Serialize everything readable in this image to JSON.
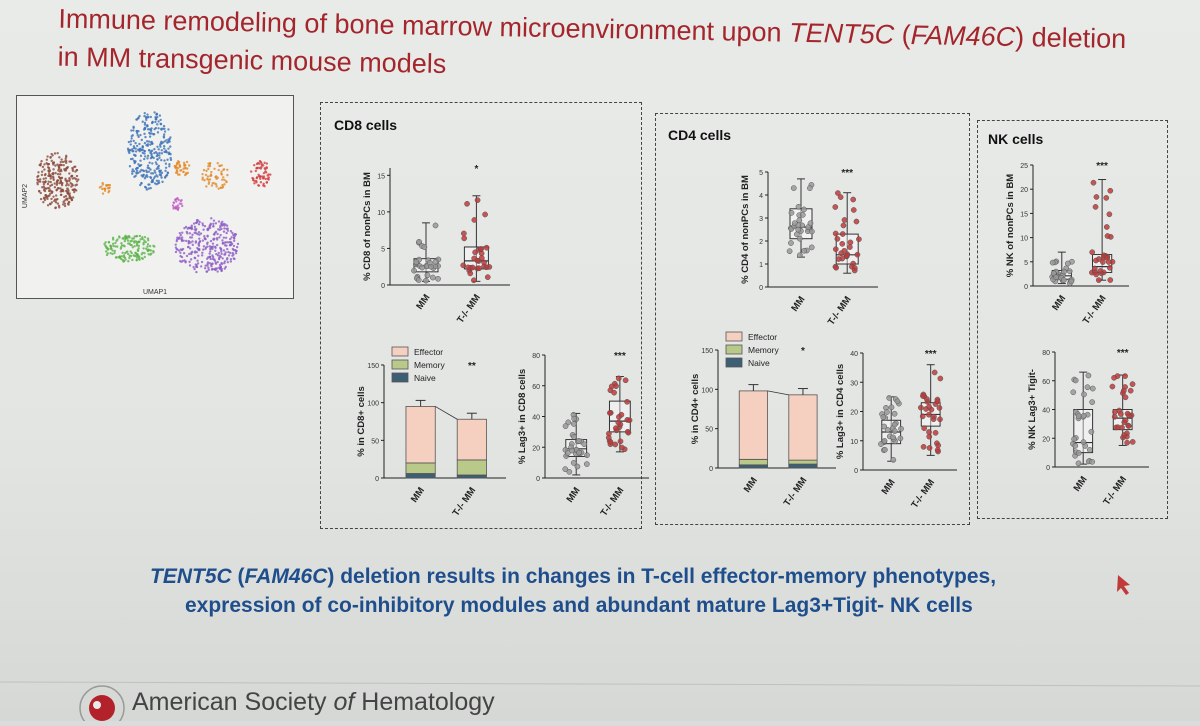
{
  "title": {
    "line1_pre": "Immune remodeling of bone marrow microenvironment upon ",
    "gene": "TENT5C",
    "paren_open": " (",
    "alias": "FAM46C",
    "line1_post": ") deletion",
    "line2": "in MM transgenic mouse models"
  },
  "umap": {
    "xlabel": "UMAP1",
    "ylabel": "UMAP2"
  },
  "conclusion": {
    "gene": "TENT5C",
    "paren_open": " (",
    "alias": "FAM46C",
    "line1_rest": ") deletion results in changes in T-cell effector-memory phenotypes,",
    "line2": "expression of co-inhibitory modules and abundant mature Lag3+Tigit- NK cells"
  },
  "footer": {
    "society_pre": "American Society ",
    "society_of": "of",
    "society_post": " Hematology"
  },
  "colors": {
    "title": "#a4262c",
    "conclusion": "#1f4e8c",
    "mm_dot": "#999999",
    "ko_dot": "#c03a3a",
    "effector": "#f5cfbf",
    "memory": "#b9c98a",
    "naive": "#3c5f73"
  },
  "chart_data": [
    {
      "type": "box",
      "panel": "CD8 cells",
      "ylabel": "% CD8 of nonPCs in BM",
      "ylim": [
        0,
        16
      ],
      "yticks": [
        "0",
        "5",
        "10",
        "15"
      ],
      "categories": [
        "MM",
        "T-/- MM"
      ],
      "significance": "*",
      "series": [
        {
          "group": "MM",
          "min": 0.5,
          "q1": 1.8,
          "median": 2.6,
          "q3": 3.6,
          "max": 8.5
        },
        {
          "group": "T-/- MM",
          "min": 0.5,
          "q1": 2.2,
          "median": 3.3,
          "q3": 5.2,
          "max": 12.2
        }
      ]
    },
    {
      "type": "bar",
      "stacked": true,
      "panel": "CD8 cells",
      "ylabel": "% in CD8+ cells",
      "ylim": [
        0,
        150
      ],
      "yticks": [
        "0",
        "50",
        "100",
        "150"
      ],
      "categories": [
        "MM",
        "T-/- MM"
      ],
      "significance": "**",
      "legend": [
        "Effector",
        "Memory",
        "Naive"
      ],
      "series": [
        {
          "name": "Naive",
          "values": [
            6,
            4
          ]
        },
        {
          "name": "Memory",
          "values": [
            14,
            20
          ]
        },
        {
          "name": "Effector",
          "values": [
            75,
            54
          ]
        }
      ]
    },
    {
      "type": "box",
      "panel": "CD8 cells",
      "ylabel": "% Lag3+ in CD8 cells",
      "ylim": [
        0,
        80
      ],
      "yticks": [
        "0",
        "20",
        "40",
        "60",
        "80"
      ],
      "categories": [
        "MM",
        "T-/- MM"
      ],
      "significance": "***",
      "series": [
        {
          "group": "MM",
          "min": 2,
          "q1": 14,
          "median": 19,
          "q3": 25,
          "max": 42
        },
        {
          "group": "T-/- MM",
          "min": 17,
          "q1": 30,
          "median": 37,
          "q3": 50,
          "max": 66
        }
      ]
    },
    {
      "type": "box",
      "panel": "CD4 cells",
      "ylabel": "% CD4 of nonPCs in BM",
      "ylim": [
        0,
        5
      ],
      "yticks": [
        "0",
        "1",
        "2",
        "3",
        "4",
        "5"
      ],
      "categories": [
        "MM",
        "T-/- MM"
      ],
      "significance": "***",
      "series": [
        {
          "group": "MM",
          "min": 1.3,
          "q1": 2.1,
          "median": 2.6,
          "q3": 3.4,
          "max": 4.7
        },
        {
          "group": "T-/- MM",
          "min": 0.6,
          "q1": 1.0,
          "median": 1.4,
          "q3": 2.3,
          "max": 4.1
        }
      ]
    },
    {
      "type": "bar",
      "stacked": true,
      "panel": "CD4 cells",
      "ylabel": "% in CD4+ cells",
      "ylim": [
        0,
        150
      ],
      "yticks": [
        "0",
        "50",
        "100",
        "150"
      ],
      "categories": [
        "MM",
        "T-/- MM"
      ],
      "significance": "*",
      "legend": [
        "Effector",
        "Memory",
        "Naive"
      ],
      "series": [
        {
          "name": "Naive",
          "values": [
            4,
            5
          ]
        },
        {
          "name": "Memory",
          "values": [
            7,
            5
          ]
        },
        {
          "name": "Effector",
          "values": [
            87,
            83
          ]
        }
      ]
    },
    {
      "type": "box",
      "panel": "CD4 cells",
      "ylabel": "% Lag3+ in CD4 cells",
      "ylim": [
        0,
        40
      ],
      "yticks": [
        "0",
        "10",
        "20",
        "30",
        "40"
      ],
      "categories": [
        "MM",
        "T-/- MM"
      ],
      "significance": "***",
      "series": [
        {
          "group": "MM",
          "min": 3,
          "q1": 9,
          "median": 13,
          "q3": 17,
          "max": 25
        },
        {
          "group": "T-/- MM",
          "min": 5,
          "q1": 15,
          "median": 19,
          "q3": 23,
          "max": 36
        }
      ]
    },
    {
      "type": "box",
      "panel": "NK cells",
      "ylabel": "% NK of nonPCs in BM",
      "ylim": [
        0,
        25
      ],
      "yticks": [
        "0",
        "5",
        "10",
        "15",
        "20",
        "25"
      ],
      "categories": [
        "MM",
        "T-/- MM"
      ],
      "significance": "***",
      "series": [
        {
          "group": "MM",
          "min": 0.5,
          "q1": 1.4,
          "median": 2.1,
          "q3": 3.2,
          "max": 7.0
        },
        {
          "group": "T-/- MM",
          "min": 1.2,
          "q1": 2.8,
          "median": 4.0,
          "q3": 6.5,
          "max": 22.0
        }
      ]
    },
    {
      "type": "box",
      "panel": "NK cells",
      "ylabel": "% NK Lag3+ Tigit-",
      "ylim": [
        0,
        80
      ],
      "yticks": [
        "0",
        "20",
        "40",
        "60",
        "80"
      ],
      "categories": [
        "MM",
        "T-/- MM"
      ],
      "significance": "***",
      "series": [
        {
          "group": "MM",
          "min": 2,
          "q1": 10,
          "median": 17,
          "q3": 40,
          "max": 66
        },
        {
          "group": "T-/- MM",
          "min": 15,
          "q1": 26,
          "median": 34,
          "q3": 40,
          "max": 64
        }
      ]
    }
  ]
}
